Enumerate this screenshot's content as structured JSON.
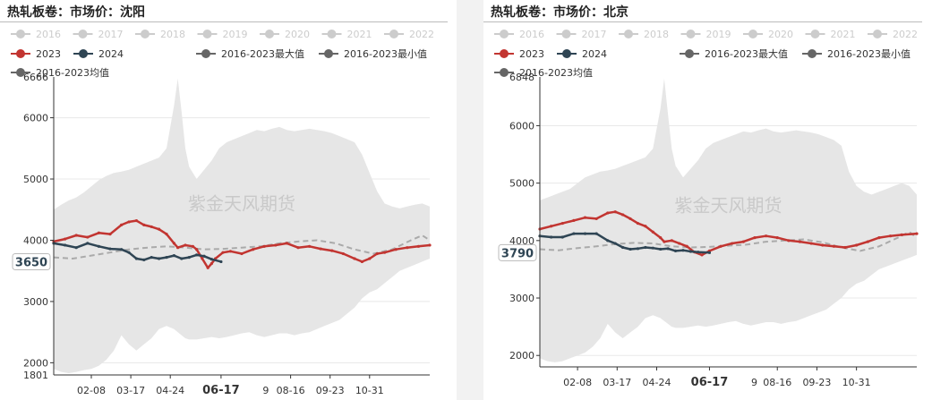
{
  "legend_years": [
    "2016",
    "2017",
    "2018",
    "2019",
    "2020",
    "2021",
    "2022"
  ],
  "legend_series": [
    {
      "label": "2023",
      "color": "#c23531"
    },
    {
      "label": "2024",
      "color": "#2f4554"
    },
    {
      "label": "2016-2023最大值",
      "color": "#666666"
    },
    {
      "label": "2016-2023最小值",
      "color": "#666666"
    }
  ],
  "legend_avg": {
    "label": "2016-2023均值",
    "color": "#666666"
  },
  "inactive_color": "#cccccc",
  "band_color": "#e6e6e6",
  "watermark": "紫金天风期货",
  "partial_tick": "9",
  "charts": [
    {
      "title": "热轧板卷：市场价：沈阳",
      "chart_data": {
        "type": "area",
        "ylim": [
          1801,
          6666
        ],
        "y_ticks": [
          2000,
          3000,
          4000,
          5000,
          6000
        ],
        "y_min_label": "1801",
        "y_max_label": "6666",
        "x_ticks": [
          "02-08",
          "03-17",
          "04-24",
          "06-17",
          "08-16",
          "09-23",
          "10-31"
        ],
        "x_tick_pos": [
          0.1,
          0.205,
          0.31,
          0.445,
          0.63,
          0.735,
          0.84
        ],
        "highlight_tick": "06-17",
        "pointer_label": "3650",
        "pointer_value": 3650,
        "pointer_pos": 0.445,
        "x": [
          0,
          0.02,
          0.04,
          0.06,
          0.08,
          0.1,
          0.12,
          0.14,
          0.16,
          0.18,
          0.2,
          0.22,
          0.24,
          0.26,
          0.28,
          0.3,
          0.32,
          0.33,
          0.34,
          0.35,
          0.36,
          0.38,
          0.4,
          0.42,
          0.44,
          0.46,
          0.48,
          0.5,
          0.52,
          0.54,
          0.56,
          0.58,
          0.6,
          0.62,
          0.64,
          0.66,
          0.68,
          0.7,
          0.72,
          0.74,
          0.76,
          0.78,
          0.8,
          0.82,
          0.84,
          0.86,
          0.88,
          0.9,
          0.92,
          0.94,
          0.96,
          0.98,
          1.0
        ],
        "band_max": [
          4500,
          4580,
          4650,
          4700,
          4780,
          4880,
          4980,
          5050,
          5100,
          5120,
          5150,
          5200,
          5250,
          5300,
          5350,
          5500,
          6200,
          6640,
          6100,
          5500,
          5200,
          5000,
          5150,
          5300,
          5500,
          5600,
          5650,
          5700,
          5750,
          5800,
          5780,
          5820,
          5850,
          5800,
          5780,
          5800,
          5820,
          5800,
          5780,
          5750,
          5700,
          5650,
          5600,
          5400,
          5100,
          4800,
          4600,
          4550,
          4520,
          4550,
          4580,
          4600,
          4550
        ],
        "band_min": [
          1900,
          1850,
          1830,
          1850,
          1880,
          1900,
          1950,
          2050,
          2200,
          2450,
          2300,
          2200,
          2300,
          2400,
          2550,
          2600,
          2550,
          2500,
          2450,
          2400,
          2380,
          2380,
          2400,
          2420,
          2400,
          2420,
          2450,
          2480,
          2500,
          2450,
          2420,
          2450,
          2480,
          2480,
          2450,
          2480,
          2500,
          2550,
          2600,
          2650,
          2700,
          2800,
          2900,
          3050,
          3150,
          3200,
          3300,
          3400,
          3500,
          3550,
          3600,
          3650,
          3700
        ],
        "series": [
          {
            "name": "2023",
            "color": "#c23531",
            "x": [
              0,
              0.03,
              0.06,
              0.09,
              0.12,
              0.15,
              0.18,
              0.2,
              0.22,
              0.24,
              0.26,
              0.28,
              0.3,
              0.32,
              0.33,
              0.35,
              0.37,
              0.38,
              0.395,
              0.41,
              0.42,
              0.43,
              0.45,
              0.47,
              0.5,
              0.53,
              0.56,
              0.59,
              0.62,
              0.65,
              0.68,
              0.71,
              0.74,
              0.77,
              0.8,
              0.82,
              0.84,
              0.86,
              0.88,
              0.91,
              0.94,
              0.97,
              1.0
            ],
            "values": [
              3980,
              4020,
              4080,
              4050,
              4120,
              4100,
              4250,
              4300,
              4320,
              4250,
              4220,
              4180,
              4100,
              3950,
              3880,
              3920,
              3900,
              3850,
              3700,
              3550,
              3620,
              3700,
              3800,
              3820,
              3780,
              3850,
              3900,
              3920,
              3950,
              3880,
              3900,
              3860,
              3830,
              3780,
              3700,
              3650,
              3700,
              3780,
              3800,
              3850,
              3880,
              3900,
              3920
            ]
          },
          {
            "name": "2024",
            "color": "#2f4554",
            "x": [
              0,
              0.03,
              0.06,
              0.09,
              0.12,
              0.15,
              0.18,
              0.2,
              0.22,
              0.24,
              0.26,
              0.28,
              0.3,
              0.32,
              0.34,
              0.36,
              0.38,
              0.4,
              0.42,
              0.445
            ],
            "values": [
              3950,
              3920,
              3880,
              3950,
              3900,
              3860,
              3850,
              3800,
              3700,
              3680,
              3720,
              3700,
              3720,
              3750,
              3700,
              3720,
              3760,
              3740,
              3690,
              3650
            ]
          }
        ],
        "avg": {
          "name": "2016-2023均值",
          "color": "#aaaaaa",
          "x": [
            0,
            0.05,
            0.1,
            0.15,
            0.2,
            0.25,
            0.3,
            0.35,
            0.4,
            0.45,
            0.5,
            0.55,
            0.6,
            0.65,
            0.7,
            0.75,
            0.8,
            0.85,
            0.9,
            0.95,
            0.98,
            1.0
          ],
          "values": [
            3720,
            3700,
            3750,
            3800,
            3850,
            3880,
            3900,
            3880,
            3850,
            3860,
            3880,
            3900,
            3950,
            3980,
            4000,
            3950,
            3850,
            3780,
            3850,
            4000,
            4080,
            4000
          ]
        }
      }
    },
    {
      "title": "热轧板卷：市场价：北京",
      "chart_data": {
        "type": "area",
        "ylim": [
          1801,
          6848
        ],
        "y_ticks": [
          2000,
          3000,
          4000,
          5000,
          6000
        ],
        "y_min_label": "",
        "y_max_label": "6848",
        "x_ticks": [
          "02-08",
          "03-17",
          "04-24",
          "06-17",
          "08-16",
          "09-23",
          "10-31"
        ],
        "x_tick_pos": [
          0.1,
          0.205,
          0.31,
          0.45,
          0.63,
          0.735,
          0.84
        ],
        "highlight_tick": "06-17",
        "pointer_label": "3790",
        "pointer_value": 3790,
        "pointer_pos": 0.45,
        "x": [
          0,
          0.02,
          0.04,
          0.06,
          0.08,
          0.1,
          0.12,
          0.14,
          0.16,
          0.18,
          0.2,
          0.22,
          0.24,
          0.26,
          0.28,
          0.3,
          0.32,
          0.33,
          0.34,
          0.35,
          0.36,
          0.38,
          0.4,
          0.42,
          0.44,
          0.46,
          0.48,
          0.5,
          0.52,
          0.54,
          0.56,
          0.58,
          0.6,
          0.62,
          0.64,
          0.66,
          0.68,
          0.7,
          0.72,
          0.74,
          0.76,
          0.78,
          0.8,
          0.82,
          0.84,
          0.86,
          0.88,
          0.9,
          0.92,
          0.94,
          0.96,
          0.98,
          1.0
        ],
        "band_max": [
          4700,
          4750,
          4800,
          4850,
          4900,
          5000,
          5100,
          5150,
          5200,
          5220,
          5250,
          5300,
          5350,
          5400,
          5450,
          5600,
          6300,
          6820,
          6200,
          5600,
          5300,
          5100,
          5250,
          5400,
          5600,
          5700,
          5750,
          5800,
          5850,
          5900,
          5880,
          5920,
          5950,
          5900,
          5880,
          5900,
          5920,
          5900,
          5880,
          5850,
          5800,
          5750,
          5650,
          5200,
          4950,
          4850,
          4800,
          4850,
          4900,
          4950,
          5000,
          4950,
          4800
        ],
        "band_min": [
          1950,
          1900,
          1880,
          1900,
          1950,
          2000,
          2050,
          2150,
          2300,
          2550,
          2400,
          2300,
          2400,
          2500,
          2650,
          2700,
          2650,
          2600,
          2550,
          2500,
          2480,
          2480,
          2500,
          2520,
          2500,
          2520,
          2550,
          2580,
          2600,
          2550,
          2520,
          2550,
          2580,
          2580,
          2550,
          2580,
          2600,
          2650,
          2700,
          2750,
          2800,
          2900,
          3000,
          3150,
          3250,
          3300,
          3400,
          3500,
          3550,
          3600,
          3650,
          3700,
          3750
        ],
        "series": [
          {
            "name": "2023",
            "color": "#c23531",
            "x": [
              0,
              0.03,
              0.06,
              0.09,
              0.12,
              0.15,
              0.18,
              0.2,
              0.22,
              0.24,
              0.26,
              0.28,
              0.3,
              0.32,
              0.33,
              0.35,
              0.37,
              0.39,
              0.41,
              0.43,
              0.45,
              0.48,
              0.51,
              0.54,
              0.57,
              0.6,
              0.63,
              0.66,
              0.69,
              0.72,
              0.75,
              0.78,
              0.81,
              0.84,
              0.87,
              0.9,
              0.93,
              0.96,
              1.0
            ],
            "values": [
              4200,
              4250,
              4300,
              4350,
              4400,
              4380,
              4480,
              4500,
              4450,
              4380,
              4300,
              4250,
              4150,
              4050,
              3980,
              4000,
              3950,
              3900,
              3800,
              3750,
              3820,
              3900,
              3950,
              3980,
              4050,
              4080,
              4050,
              4000,
              3980,
              3950,
              3920,
              3900,
              3880,
              3920,
              3980,
              4050,
              4080,
              4100,
              4120
            ]
          },
          {
            "name": "2024",
            "color": "#2f4554",
            "x": [
              0,
              0.03,
              0.06,
              0.09,
              0.12,
              0.15,
              0.18,
              0.2,
              0.22,
              0.24,
              0.26,
              0.28,
              0.3,
              0.32,
              0.34,
              0.36,
              0.38,
              0.4,
              0.42,
              0.45
            ],
            "values": [
              4080,
              4060,
              4060,
              4120,
              4120,
              4120,
              4000,
              3950,
              3880,
              3850,
              3860,
              3880,
              3870,
              3850,
              3860,
              3820,
              3830,
              3810,
              3800,
              3790
            ]
          }
        ],
        "avg": {
          "name": "2016-2023均值",
          "color": "#aaaaaa",
          "x": [
            0,
            0.05,
            0.1,
            0.15,
            0.2,
            0.25,
            0.3,
            0.35,
            0.4,
            0.45,
            0.5,
            0.55,
            0.6,
            0.65,
            0.7,
            0.75,
            0.8,
            0.85,
            0.9,
            0.95,
            0.98,
            1.0
          ],
          "values": [
            3850,
            3830,
            3870,
            3900,
            3940,
            3960,
            3950,
            3900,
            3880,
            3890,
            3910,
            3930,
            3980,
            4000,
            4020,
            3970,
            3880,
            3820,
            3900,
            4050,
            4150,
            4050
          ]
        }
      }
    }
  ]
}
